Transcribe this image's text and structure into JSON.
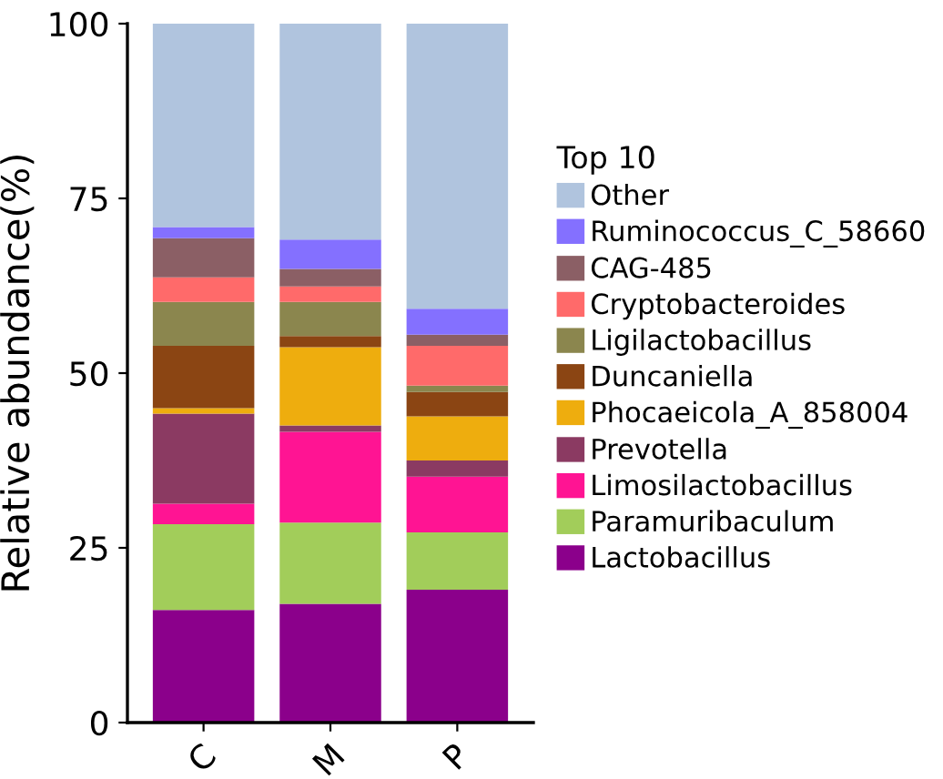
{
  "chart_data": {
    "type": "bar",
    "stacked": true,
    "ylabel": "Relative abundance(%)",
    "legend_title": "Top 10",
    "legend": "right",
    "grid": false,
    "categories": [
      "C",
      "M",
      "P"
    ],
    "ylim": [
      0,
      100
    ],
    "yticks": [
      0,
      25,
      50,
      75,
      100
    ],
    "series": [
      {
        "name": "Lactobacillus",
        "color": "#8b008b",
        "values": [
          16.1,
          17.0,
          19.0
        ]
      },
      {
        "name": "Paramuribaculum",
        "color": "#a2cd5a",
        "values": [
          12.3,
          11.6,
          8.2
        ]
      },
      {
        "name": "Limosilactobacillus",
        "color": "#ff1493",
        "values": [
          2.9,
          13.0,
          8.0
        ]
      },
      {
        "name": "Prevotella",
        "color": "#8b3a62",
        "values": [
          12.9,
          0.9,
          2.3
        ]
      },
      {
        "name": "Phocaeicola_A_858004",
        "color": "#eead0e",
        "values": [
          0.8,
          11.2,
          6.3
        ]
      },
      {
        "name": "Duncaniella",
        "color": "#8b4513",
        "values": [
          8.9,
          1.6,
          3.5
        ]
      },
      {
        "name": "Ligilactobacillus",
        "color": "#8b864e",
        "values": [
          6.3,
          4.9,
          0.9
        ]
      },
      {
        "name": "Cryptobacteroides",
        "color": "#ff6a6a",
        "values": [
          3.5,
          2.2,
          5.7
        ]
      },
      {
        "name": "CAG-485",
        "color": "#8b5f65",
        "values": [
          5.6,
          2.5,
          1.6
        ]
      },
      {
        "name": "Ruminococcus_C_58660",
        "color": "#8470ff",
        "values": [
          1.6,
          4.2,
          3.7
        ]
      },
      {
        "name": "Other",
        "color": "#b0c4de",
        "values": [
          29.1,
          30.9,
          40.8
        ]
      }
    ]
  }
}
